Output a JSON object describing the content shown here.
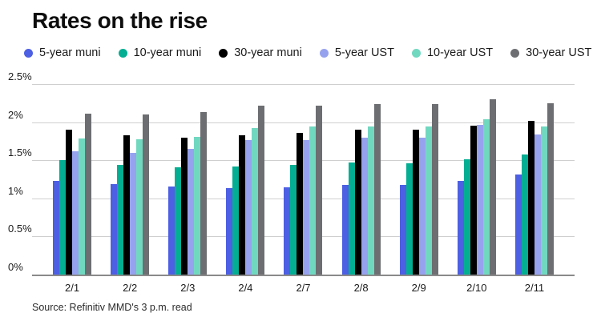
{
  "title": "Rates on the rise",
  "source": "Source: Refinitiv MMD's 3 p.m. read",
  "colors": {
    "five_year_muni": "#4d5fe3",
    "ten_year_muni": "#04ae92",
    "thirty_year_muni": "#000000",
    "five_year_ust": "#97a2ee",
    "ten_year_ust": "#71d8c0",
    "thirty_year_ust": "#6d6e71",
    "gridline": "#cfcfcf",
    "axis_line": "#8a8a8a"
  },
  "chart_data": {
    "type": "bar",
    "title": "Rates on the rise",
    "categories": [
      "2/1",
      "2/2",
      "2/3",
      "2/4",
      "2/7",
      "2/8",
      "2/9",
      "2/10",
      "2/11"
    ],
    "series": [
      {
        "name": "5-year muni",
        "color": "#4d5fe3",
        "values": [
          1.23,
          1.19,
          1.16,
          1.14,
          1.15,
          1.18,
          1.18,
          1.23,
          1.31
        ]
      },
      {
        "name": "10-year muni",
        "color": "#04ae92",
        "values": [
          1.5,
          1.44,
          1.41,
          1.42,
          1.44,
          1.47,
          1.46,
          1.51,
          1.58
        ]
      },
      {
        "name": "30-year muni",
        "color": "#000000",
        "values": [
          1.9,
          1.83,
          1.8,
          1.83,
          1.86,
          1.9,
          1.9,
          1.95,
          2.02
        ]
      },
      {
        "name": "5-year UST",
        "color": "#97a2ee",
        "values": [
          1.62,
          1.6,
          1.65,
          1.77,
          1.77,
          1.8,
          1.8,
          1.96,
          1.84
        ]
      },
      {
        "name": "10-year UST",
        "color": "#71d8c0",
        "values": [
          1.79,
          1.78,
          1.81,
          1.92,
          1.94,
          1.94,
          1.94,
          2.04,
          1.94
        ]
      },
      {
        "name": "30-year UST",
        "color": "#6d6e71",
        "values": [
          2.11,
          2.1,
          2.13,
          2.22,
          2.22,
          2.24,
          2.24,
          2.3,
          2.25
        ]
      }
    ],
    "xlabel": "",
    "ylabel": "",
    "y_ticks": [
      "2.5%",
      "2%",
      "1.5%",
      "1%",
      "0.5%",
      "0%"
    ],
    "y_tick_values": [
      2.5,
      2.0,
      1.5,
      1.0,
      0.5,
      0.0
    ],
    "ylim": [
      0,
      2.5
    ],
    "grid": true,
    "legend_position": "top"
  }
}
